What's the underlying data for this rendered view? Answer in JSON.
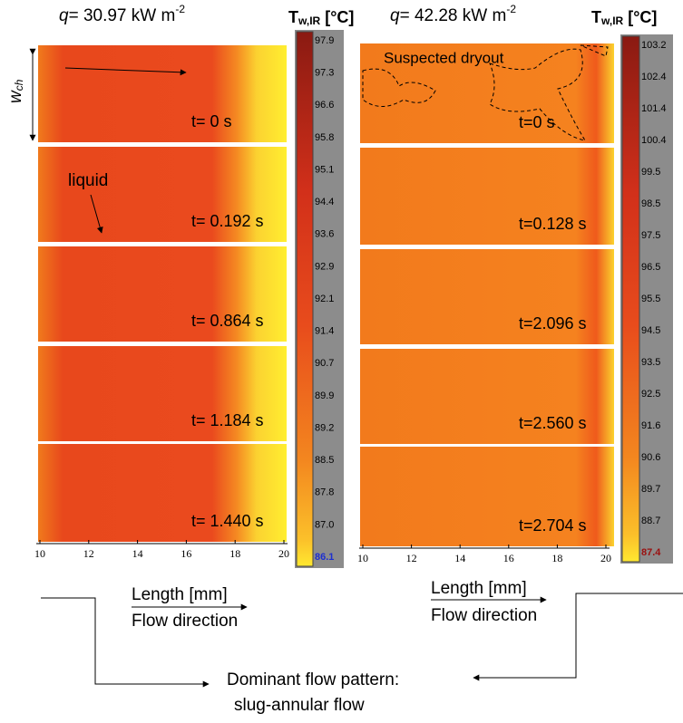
{
  "panels": [
    {
      "heat_flux": {
        "symbol": "q",
        "value": "= 30.97 kW m",
        "exponent": "-2"
      },
      "colorbar": {
        "title": "T",
        "subscript": "w,IR",
        "unit": " [°C]",
        "ticks": [
          "97.9",
          "97.3",
          "96.6",
          "95.8",
          "95.1",
          "94.4",
          "93.6",
          "92.9",
          "92.1",
          "91.4",
          "90.7",
          "89.9",
          "89.2",
          "88.5",
          "87.8",
          "87.0",
          "86.1"
        ]
      },
      "frames": [
        "t= 0 s",
        "t= 0.192 s",
        "t= 0.864 s",
        "t= 1.184 s",
        "t= 1.440 s"
      ],
      "x_ticks": [
        "10",
        "12",
        "14",
        "16",
        "18",
        "20"
      ],
      "x_label": "Length [mm]",
      "flow": "Flow direction"
    },
    {
      "heat_flux": {
        "symbol": "q",
        "value": "= 42.28 kW m",
        "exponent": "-2"
      },
      "colorbar": {
        "title": "T",
        "subscript": "w,IR",
        "unit": " [°C]",
        "ticks": [
          "103.2",
          "102.4",
          "101.4",
          "100.4",
          "99.5",
          "98.5",
          "97.5",
          "96.5",
          "95.5",
          "94.5",
          "93.5",
          "92.5",
          "91.6",
          "90.6",
          "89.7",
          "88.7",
          "87.4"
        ]
      },
      "frames": [
        "t=0 s",
        "t=0.128 s",
        "t=2.096 s",
        "t=2.560 s",
        "t=2.704 s"
      ],
      "x_ticks": [
        "10",
        "12",
        "14",
        "16",
        "18",
        "20"
      ],
      "x_label": "Length [mm]",
      "flow": "Flow direction"
    }
  ],
  "annotations": {
    "width": {
      "symbol": "w",
      "subscript": "ch"
    },
    "liquid": "liquid",
    "dryout": "Suspected dryout"
  },
  "conclusion": {
    "line1": "Dominant flow pattern:",
    "line2": "slug-annular flow"
  }
}
